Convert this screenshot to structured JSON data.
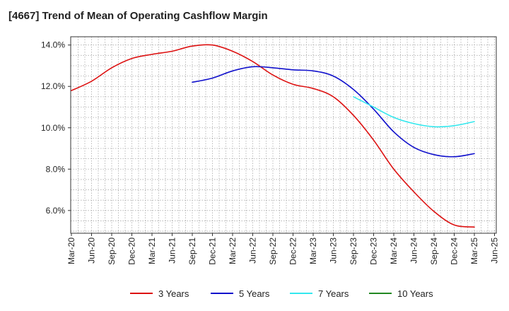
{
  "chart_data": {
    "type": "line",
    "title": "[4667]  Trend of Mean of Operating Cashflow Margin",
    "xlabel": "",
    "ylabel": "",
    "ylim": [
      4.9,
      14.4
    ],
    "yticks": [
      6.0,
      8.0,
      10.0,
      12.0,
      14.0
    ],
    "ytick_labels": [
      "6.0%",
      "8.0%",
      "10.0%",
      "12.0%",
      "14.0%"
    ],
    "x_labels": [
      "Mar-20",
      "Jun-20",
      "Sep-20",
      "Dec-20",
      "Mar-21",
      "Jun-21",
      "Sep-21",
      "Dec-21",
      "Mar-22",
      "Jun-22",
      "Sep-22",
      "Dec-22",
      "Mar-23",
      "Jun-23",
      "Sep-23",
      "Dec-23",
      "Mar-24",
      "Jun-24",
      "Sep-24",
      "Dec-24",
      "Mar-25",
      "Jun-25"
    ],
    "grid": true,
    "legend_position": "bottom",
    "series": [
      {
        "name": "3 Years",
        "color": "#dd1111",
        "start_index": 0,
        "values": [
          11.8,
          12.25,
          12.9,
          13.35,
          13.55,
          13.7,
          13.95,
          14.0,
          13.7,
          13.2,
          12.55,
          12.1,
          11.9,
          11.5,
          10.6,
          9.4,
          8.0,
          6.9,
          5.95,
          5.3,
          5.2
        ]
      },
      {
        "name": "5 Years",
        "color": "#1111cc",
        "start_index": 6,
        "values": [
          12.2,
          12.4,
          12.75,
          12.95,
          12.9,
          12.8,
          12.75,
          12.5,
          11.85,
          10.9,
          9.8,
          9.05,
          8.7,
          8.6,
          8.75
        ]
      },
      {
        "name": "7 Years",
        "color": "#33e8ee",
        "start_index": 14,
        "values": [
          11.5,
          11.0,
          10.5,
          10.2,
          10.05,
          10.1,
          10.3
        ]
      },
      {
        "name": "10 Years",
        "color": "#228822",
        "start_index": 0,
        "values": []
      }
    ]
  }
}
